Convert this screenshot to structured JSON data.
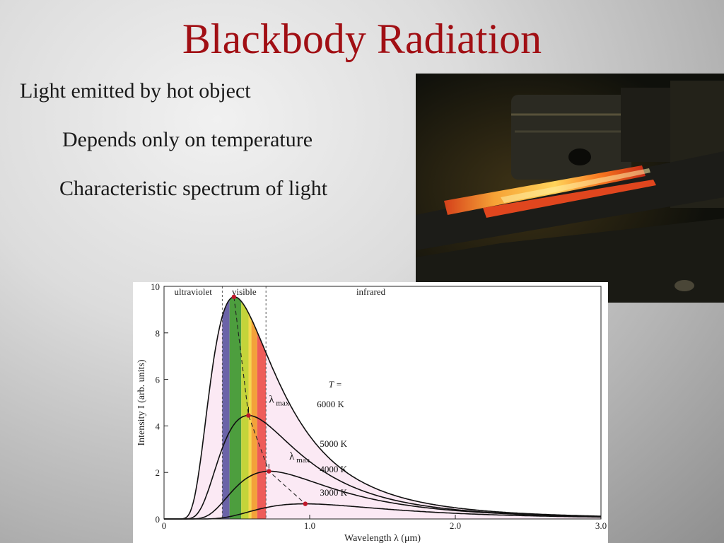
{
  "slide": {
    "title": "Blackbody Radiation",
    "bullets": [
      "Light emitted by hot object",
      "Depends only on temperature",
      "Characteristic spectrum of light"
    ]
  },
  "colors": {
    "title": "#a10f14",
    "text": "#1a1a1a",
    "envelope_fill": "#fbe9f4",
    "peak_marker": "#c0182a",
    "spectrum_bands": [
      "#6b63a8",
      "#4d9e3e",
      "#c4d43a",
      "#f5d84c",
      "#f3a23a",
      "#ee5c59"
    ]
  },
  "photo": {
    "subject": "glowing hot metal bar"
  },
  "chart_data": {
    "type": "line",
    "xlabel": "Wavelength",
    "xsymbol": "λ",
    "xunit": "(μm)",
    "ylabel": "Intensity",
    "ysymbol": "I",
    "yunit": "(arb. units)",
    "xlim": [
      0,
      3.0
    ],
    "ylim": [
      0,
      10
    ],
    "x_ticks": [
      "0",
      "1.0",
      "2.0",
      "3.0"
    ],
    "y_ticks": [
      "0",
      "2",
      "4",
      "6",
      "8",
      "10"
    ],
    "region_labels": [
      "ultraviolet",
      "visible",
      "infrared"
    ],
    "region_boundaries": [
      0.4,
      0.7
    ],
    "spectrum_bands": [
      [
        0.4,
        0.45
      ],
      [
        0.45,
        0.53
      ],
      [
        0.53,
        0.58
      ],
      [
        0.58,
        0.6
      ],
      [
        0.6,
        0.64
      ],
      [
        0.64,
        0.7
      ]
    ],
    "temperature_header": "T =",
    "lambda_max_label": "λ",
    "lambda_max_sub": "max",
    "series": [
      {
        "name": "6000 K",
        "temperature": 6000,
        "peak": [
          0.48,
          9.55
        ]
      },
      {
        "name": "5000 K",
        "temperature": 5000,
        "peak": [
          0.58,
          4.45
        ]
      },
      {
        "name": "4000 K",
        "temperature": 4000,
        "peak": [
          0.72,
          2.05
        ]
      },
      {
        "name": "3000 K",
        "temperature": 3000,
        "peak": [
          0.97,
          0.65
        ]
      }
    ]
  }
}
